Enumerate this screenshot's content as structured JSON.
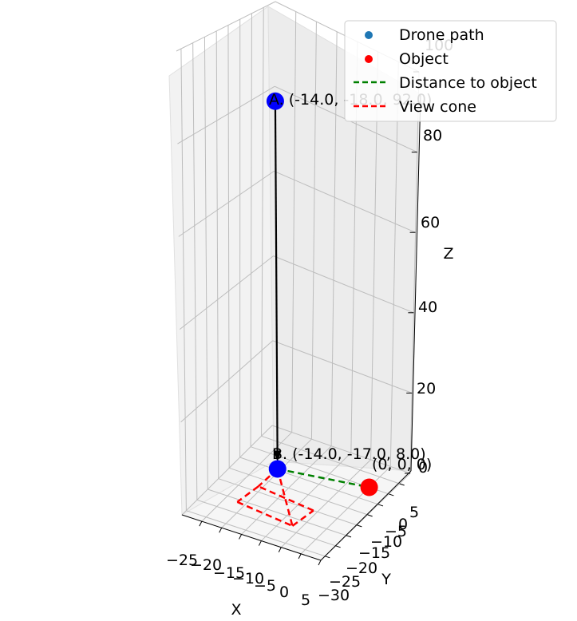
{
  "chart_data": {
    "type": "scatter3d",
    "title": "",
    "xlabel": "X",
    "ylabel": "Y",
    "zlabel": "Z",
    "xlim": [
      -30,
      5
    ],
    "ylim": [
      -32,
      10
    ],
    "zlim": [
      0,
      100
    ],
    "x_ticks": [
      "−25",
      "−20",
      "−15",
      "−10",
      "−5",
      "0",
      "5"
    ],
    "y_ticks": [
      "−30",
      "−25",
      "−20",
      "−15",
      "−10",
      "−5",
      "0",
      "5"
    ],
    "z_ticks": [
      "0",
      "20",
      "40",
      "60",
      "80",
      "100"
    ],
    "grid": true,
    "legend": {
      "position": "top-right",
      "entries": [
        {
          "label": "Drone path",
          "marker": "dot",
          "color": "#1f77b4"
        },
        {
          "label": "Object",
          "marker": "dot",
          "color": "#ff0000"
        },
        {
          "label": "Distance to object",
          "marker": "dashed-line",
          "color": "#008000"
        },
        {
          "label": "View cone",
          "marker": "dashed-line",
          "color": "#ff0000"
        }
      ]
    },
    "series": [
      {
        "name": "Drone path",
        "color": "#0000ff",
        "points": [
          {
            "label": "A. (-14.0, -18.0, 92.0)",
            "x": -14.0,
            "y": -18.0,
            "z": 92.0
          },
          {
            "label": "B. (-14.0, -17.0, 8.0)",
            "x": -14.0,
            "y": -17.0,
            "z": 8.0
          }
        ]
      },
      {
        "name": "Object",
        "color": "#ff0000",
        "points": [
          {
            "label": "(0, 0, 0)",
            "x": 0,
            "y": 0,
            "z": 0
          }
        ]
      }
    ],
    "arrow": {
      "from": "A",
      "to": "B",
      "color": "#000000"
    },
    "distance_line": {
      "from": [
        -14.0,
        -17.0,
        8.0
      ],
      "to": [
        0,
        0,
        0
      ],
      "color": "#008000"
    },
    "view_cone": {
      "apex": [
        -14.0,
        -17.0,
        8.0
      ],
      "base_corners": [
        [
          -7,
          -23,
          0
        ],
        [
          -6,
          -15,
          0
        ],
        [
          -21,
          -13,
          0
        ],
        [
          -22,
          -21,
          0
        ]
      ],
      "color": "#ff0000"
    }
  }
}
